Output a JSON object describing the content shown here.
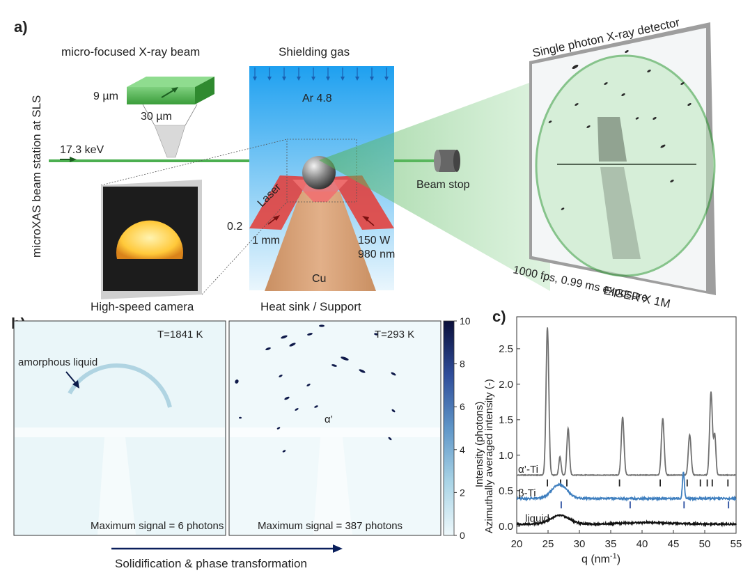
{
  "panel_a": {
    "letter": "a)",
    "beam_title": "micro-focused X-ray beam",
    "beam_height": "9 µm",
    "beam_width": "30 µm",
    "beamline": "microXAS beam station at SLS",
    "energy": "17.3 keV",
    "camera": "High-speed camera",
    "shielding": "Shielding gas",
    "argon": "Ar 4.8",
    "laser": "Laser",
    "laser_thickness": "0.2",
    "laser_width": "1 mm",
    "laser_power": "150 W",
    "laser_wavelength": "980 nm",
    "copper": "Cu",
    "heatsink": "Heat sink / Support",
    "beamstop": "Beam stop",
    "detector_title": "Single photon X-ray detector",
    "detector_spec": "1000 fps, 0.99 ms exposure",
    "detector_model": "EIGER X 1M"
  },
  "panel_b": {
    "letter": "b)",
    "left": {
      "temperature": "T=1841 K",
      "annotation": "amorphous liquid",
      "max_signal": "Maximum signal = 6 photons"
    },
    "right": {
      "temperature": "T=293 K",
      "annotation": "α’",
      "max_signal": "Maximum signal = 387 photons"
    },
    "colorbar_label": "Intensity (photons)",
    "colorbar_ticks": [
      "0",
      "2",
      "4",
      "6",
      "8",
      "10"
    ],
    "arrow_label": "Solidification & phase transformation"
  },
  "chart_data": {
    "type": "line",
    "letter": "c)",
    "xlabel": "q (nm",
    "xlabel_sup": "-1",
    "xlabel_end": ")",
    "ylabel": "Azimuthally averaged intensity (-)",
    "xlim": [
      20,
      55
    ],
    "ylim": [
      -0.1,
      2.95
    ],
    "xticks": [
      20,
      25,
      30,
      35,
      40,
      45,
      50,
      55
    ],
    "yticks": [
      0.0,
      0.5,
      1.0,
      1.5,
      2.0,
      2.5
    ],
    "ytick_labels": [
      "0.0",
      "0.5",
      "1.0",
      "1.5",
      "2.0",
      "2.5"
    ],
    "series": [
      {
        "name": "α’-Ti",
        "color": "#707070",
        "baseline": 0.72,
        "peaks": [
          [
            24.9,
            2.08,
            0.22
          ],
          [
            26.9,
            0.26,
            0.18
          ],
          [
            28.2,
            0.66,
            0.2
          ],
          [
            36.9,
            0.82,
            0.22
          ],
          [
            43.3,
            0.8,
            0.22
          ],
          [
            47.6,
            0.57,
            0.22
          ],
          [
            51.0,
            1.17,
            0.22
          ],
          [
            51.6,
            0.56,
            0.18
          ]
        ],
        "markers": [
          24.9,
          27.0,
          28.0,
          36.4,
          42.9,
          47.2,
          49.3,
          50.4,
          51.2,
          53.7
        ],
        "marker_y": 0.61,
        "marker_color": "#222222"
      },
      {
        "name": "β-Ti",
        "color": "#3f7fbf",
        "baseline": 0.39,
        "peaks": [
          [
            26.8,
            0.2,
            1.2
          ],
          [
            46.6,
            0.38,
            0.15
          ]
        ],
        "markers": [
          27.1,
          38.1,
          46.7,
          53.8
        ],
        "marker_y": 0.3,
        "marker_color": "#2a4ea0"
      },
      {
        "name": "liquid",
        "color": "#111111",
        "baseline": 0.03,
        "peaks": [
          [
            26.9,
            0.12,
            1.5
          ],
          [
            41.0,
            0.02,
            4.0
          ]
        ],
        "markers": [],
        "marker_y": 0,
        "marker_color": "#111111"
      }
    ]
  },
  "colors": {
    "beam": "#4caf50",
    "laser": "#e53935",
    "gas_top": "#29a3ee",
    "copper": "#d9a277",
    "detector_ring": "#2e9b33",
    "colorbar_dark": "#0a0f3a"
  }
}
